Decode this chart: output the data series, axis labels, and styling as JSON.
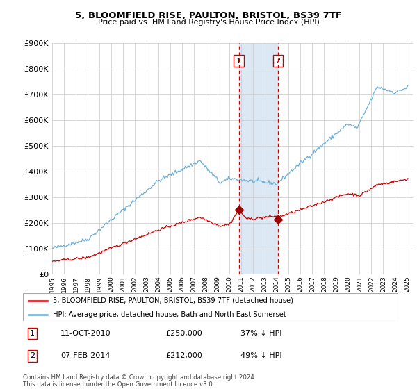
{
  "title": "5, BLOOMFIELD RISE, PAULTON, BRISTOL, BS39 7TF",
  "subtitle": "Price paid vs. HM Land Registry's House Price Index (HPI)",
  "legend_line1": "5, BLOOMFIELD RISE, PAULTON, BRISTOL, BS39 7TF (detached house)",
  "legend_line2": "HPI: Average price, detached house, Bath and North East Somerset",
  "transaction1_date": "11-OCT-2010",
  "transaction1_price": "£250,000",
  "transaction1_hpi": "37% ↓ HPI",
  "transaction1_year": 2010.78,
  "transaction1_value": 250000,
  "transaction2_date": "07-FEB-2014",
  "transaction2_price": "£212,000",
  "transaction2_hpi": "49% ↓ HPI",
  "transaction2_year": 2014.1,
  "transaction2_value": 212000,
  "footer1": "Contains HM Land Registry data © Crown copyright and database right 2024.",
  "footer2": "This data is licensed under the Open Government Licence v3.0.",
  "hpi_color": "#6baed6",
  "price_color": "#cc0000",
  "marker_color": "#990000",
  "dashed_color": "#cc0000",
  "highlight_color": "#dce9f5",
  "ylim": [
    0,
    900000
  ],
  "xlim_start": 1995,
  "xlim_end": 2025.5
}
